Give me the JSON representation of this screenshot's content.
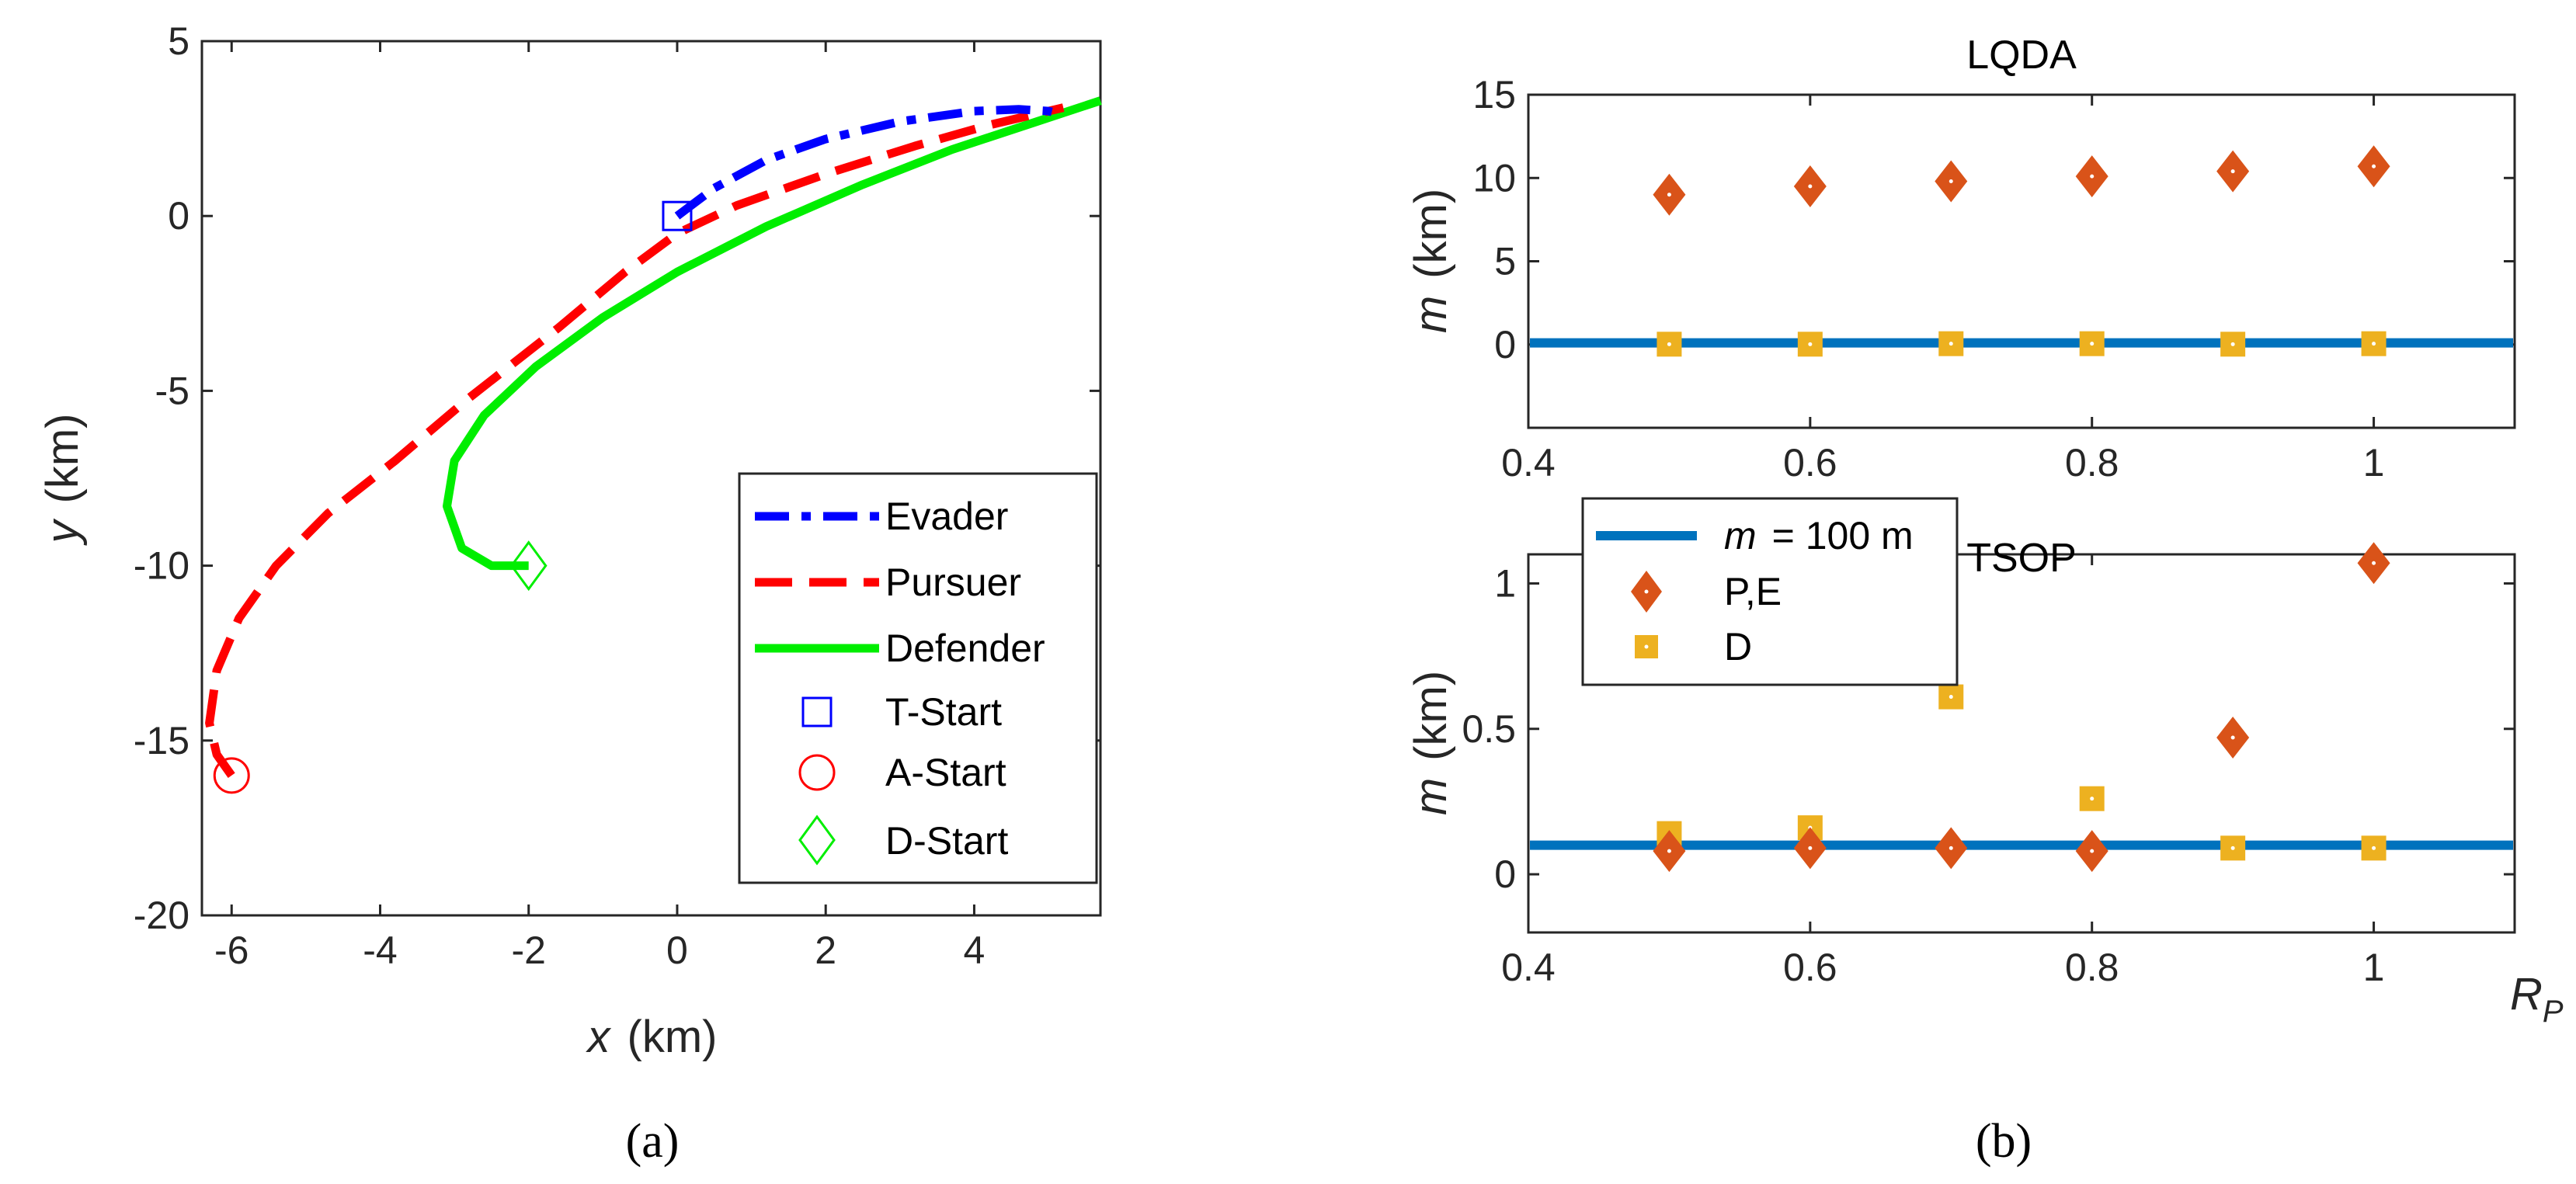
{
  "captions": {
    "left": "(a)",
    "right": "(b)"
  },
  "colors": {
    "evader": "#0000ff",
    "pursuer": "#ff0000",
    "defender": "#00ee00",
    "line": "#0072bd",
    "pe": "#d95319",
    "d": "#edb120"
  },
  "chart_data": [
    {
      "type": "line",
      "panel": "(a)",
      "xlabel_var": "x",
      "xlabel_unit": "(km)",
      "ylabel_var": "y",
      "ylabel_unit": "(km)",
      "xlim": [
        -6.4,
        5.7
      ],
      "ylim": [
        -20,
        5
      ],
      "xticks": [
        -6,
        -4,
        -2,
        0,
        2,
        4
      ],
      "yticks": [
        5,
        0,
        -5,
        -10,
        -15,
        -20
      ],
      "legend_position": "bottom-right",
      "series": [
        {
          "name": "Evader",
          "style": "dash-dot",
          "points": [
            [
              0,
              0
            ],
            [
              0.5,
              0.8
            ],
            [
              1.2,
              1.6
            ],
            [
              2,
              2.2
            ],
            [
              3,
              2.7
            ],
            [
              4,
              3.0
            ],
            [
              4.6,
              3.05
            ],
            [
              5.0,
              3.0
            ],
            [
              5.2,
              2.9
            ]
          ]
        },
        {
          "name": "Pursuer",
          "style": "dashed",
          "points": [
            [
              -6,
              -16
            ],
            [
              -6.2,
              -15.4
            ],
            [
              -6.3,
              -14.5
            ],
            [
              -6.2,
              -13
            ],
            [
              -5.9,
              -11.5
            ],
            [
              -5.4,
              -10
            ],
            [
              -4.7,
              -8.5
            ],
            [
              -3.8,
              -7
            ],
            [
              -2.8,
              -5.2
            ],
            [
              -1.6,
              -3.2
            ],
            [
              -0.7,
              -1.6
            ],
            [
              0,
              -0.5
            ],
            [
              0.8,
              0.3
            ],
            [
              2,
              1.2
            ],
            [
              3.2,
              2.0
            ],
            [
              4.2,
              2.6
            ],
            [
              5.0,
              3.0
            ],
            [
              5.2,
              3.1
            ]
          ]
        },
        {
          "name": "Defender",
          "style": "solid",
          "points": [
            [
              -2,
              -10
            ],
            [
              -2.5,
              -10
            ],
            [
              -2.9,
              -9.5
            ],
            [
              -3.1,
              -8.3
            ],
            [
              -3.0,
              -7
            ],
            [
              -2.6,
              -5.7
            ],
            [
              -1.9,
              -4.3
            ],
            [
              -1.0,
              -2.9
            ],
            [
              0,
              -1.6
            ],
            [
              1.2,
              -0.3
            ],
            [
              2.5,
              0.9
            ],
            [
              3.7,
              1.9
            ],
            [
              4.7,
              2.6
            ],
            [
              5.7,
              3.3
            ]
          ]
        },
        {
          "name": "T-Start",
          "marker": "square",
          "points": [
            [
              0,
              0
            ]
          ]
        },
        {
          "name": "A-Start",
          "marker": "circle",
          "points": [
            [
              -6,
              -16
            ]
          ]
        },
        {
          "name": "D-Start",
          "marker": "diamond",
          "points": [
            [
              -2,
              -10
            ]
          ]
        }
      ]
    },
    {
      "type": "scatter",
      "panel": "(b) top",
      "title": "LQDA",
      "ylabel_var": "m",
      "ylabel_unit": "(km)",
      "xlim": [
        0.4,
        1.1
      ],
      "ylim": [
        -5,
        15
      ],
      "xticks": [
        "0.4",
        "0.6",
        "0.8",
        "1"
      ],
      "yticks": [
        "15",
        "10",
        "5",
        "0"
      ],
      "xtick_values": [
        0.4,
        0.6,
        0.8,
        1.0
      ],
      "ytick_values": [
        15,
        10,
        5,
        0
      ],
      "x": [
        0.5,
        0.6,
        0.7,
        0.8,
        0.9,
        1.0
      ],
      "series": [
        {
          "name": "P,E",
          "marker": "diamond",
          "values": [
            9.0,
            9.5,
            9.8,
            10.1,
            10.4,
            10.7
          ]
        },
        {
          "name": "D",
          "marker": "square",
          "values": [
            0.02,
            0.02,
            0.05,
            0.05,
            0.02,
            0.05
          ]
        }
      ],
      "reference_line": 0.1
    },
    {
      "type": "scatter",
      "panel": "(b) bottom",
      "title": "TSOP",
      "ylabel_var": "m",
      "ylabel_unit": "(km)",
      "xlabel_var": "R",
      "xlabel_sub": "P",
      "xlim": [
        0.4,
        1.1
      ],
      "ylim": [
        -0.2,
        1.1
      ],
      "xticks": [
        "0.4",
        "0.6",
        "0.8",
        "1"
      ],
      "yticks": [
        "1",
        "0.5",
        "0"
      ],
      "xtick_values": [
        0.4,
        0.6,
        0.8,
        1.0
      ],
      "ytick_values": [
        1,
        0.5,
        0
      ],
      "x": [
        0.5,
        0.6,
        0.7,
        0.8,
        0.9,
        1.0
      ],
      "series": [
        {
          "name": "P,E",
          "marker": "diamond",
          "values": [
            0.08,
            0.09,
            0.09,
            0.08,
            0.47,
            1.07
          ]
        },
        {
          "name": "D",
          "marker": "square",
          "values": [
            0.14,
            0.16,
            0.61,
            0.26,
            0.09,
            0.09
          ]
        }
      ],
      "reference_line": 0.1,
      "legend": {
        "line_var": "m",
        "line_label": "= 100 m",
        "pe": "P,E",
        "d": "D"
      }
    }
  ]
}
